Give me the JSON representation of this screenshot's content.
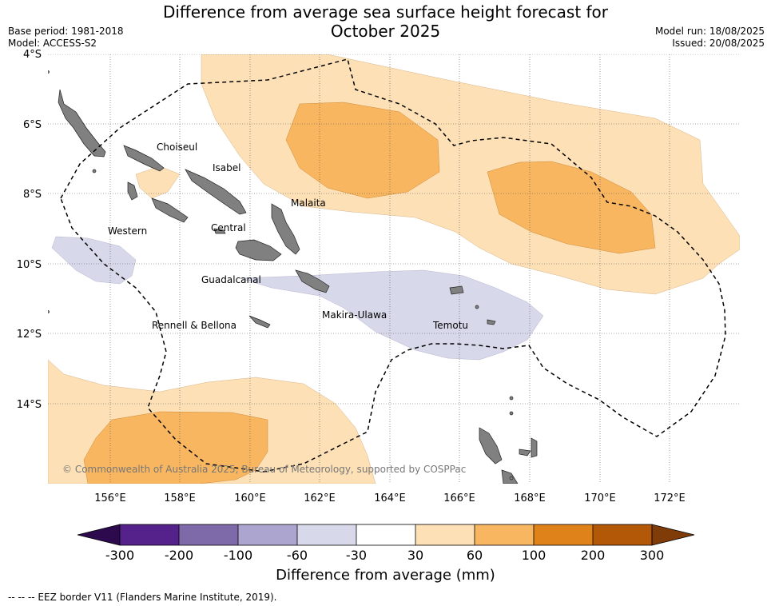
{
  "title_line1": "Difference from average sea surface height forecast for",
  "title_line2": "October 2025",
  "meta_left": {
    "base_period": "Base period: 1981-2018",
    "model": "Model: ACCESS-S2"
  },
  "meta_right": {
    "model_run": "Model run: 18/08/2025",
    "issued": "Issued: 20/08/2025"
  },
  "lat_labels": [
    "4°S",
    "6°S",
    "8°S",
    "10°S",
    "12°S",
    "14°S"
  ],
  "lon_labels": [
    "156°E",
    "158°E",
    "160°E",
    "162°E",
    "164°E",
    "166°E",
    "168°E",
    "170°E",
    "172°E"
  ],
  "provinces": [
    "Choiseul",
    "Isabel",
    "Malaita",
    "Western",
    "Central",
    "Guadalcanal",
    "Makira-Ulawa",
    "Rennell & Bellona",
    "Temotu"
  ],
  "copyright": "© Commonwealth of Australia 2025, Bureau of Meteorology, supported by COSPPac",
  "colorbar": {
    "ticks": [
      "-300",
      "-200",
      "-100",
      "-60",
      "-30",
      "30",
      "60",
      "100",
      "200",
      "300"
    ],
    "colors": [
      "#2d0a4e",
      "#54228a",
      "#7e6aa9",
      "#aca5cf",
      "#d7d8ea",
      "#ffffff",
      "#fde0b5",
      "#f8b661",
      "#e0821a",
      "#b35806",
      "#7f3b08"
    ],
    "label": "Difference from average (mm)"
  },
  "footnote": "--  --  -- EEZ border V11 (Flanders Marine Institute, 2019).",
  "palette": {
    "light_orange": "#fde0b5",
    "orange": "#f8b661",
    "light_purple": "#d7d8ea",
    "land": "#808080"
  }
}
